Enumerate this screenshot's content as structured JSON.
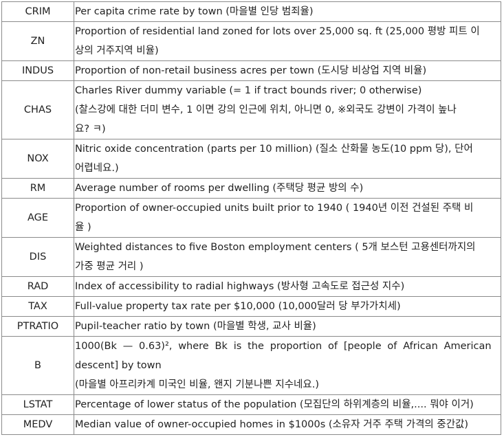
{
  "rows": [
    {
      "key": "CRIM",
      "desc": [
        "Per capita crime rate by town (마을별 인당 범죄율)"
      ]
    },
    {
      "key": "ZN",
      "desc": [
        "Proportion of residential land zoned for lots over 25,000 sq. ft (25,000 평방 피트 이",
        "상의 거주지역 비율)"
      ]
    },
    {
      "key": "INDUS",
      "desc": [
        "Proportion of non-retail business acres per town (도시당 비상업 지역 비율)"
      ]
    },
    {
      "key": "CHAS",
      "desc": [
        "Charles River dummy variable (= 1 if tract bounds river; 0 otherwise)",
        "(찰스강에 대한 더미 변수, 1 이면 강의 인근에 위치, 아니면 0, ※외국도 강변이 가격이 높나",
        "요? ㅋ)"
      ]
    },
    {
      "key": "NOX",
      "desc": [
        "Nitric oxide concentration (parts per 10 million) (질소 산화물 농도(10 ppm 당), 단어",
        "어렵네요.)"
      ]
    },
    {
      "key": "RM",
      "desc": [
        "Average number of rooms per dwelling (주택당 평균 방의 수)"
      ]
    },
    {
      "key": "AGE",
      "desc": [
        "Proportion of owner-occupied units built prior to 1940 ( 1940년 이전 건설된 주택 비",
        "율 )"
      ]
    },
    {
      "key": "DIS",
      "desc": [
        "Weighted distances to five Boston employment centers ( 5개 보스턴 고용센터까지의",
        "가중 평균 거리 )"
      ]
    },
    {
      "key": "RAD",
      "desc": [
        "Index of accessibility to radial highways (방사형 고속도로 접근성 지수)"
      ]
    },
    {
      "key": "TAX",
      "desc": [
        "Full-value property tax rate per $10,000 (10,000달러 당 부가가치세)"
      ]
    },
    {
      "key": "PTRATIO",
      "desc": [
        "Pupil-teacher ratio by town (마을별 학생, 교사 비율)"
      ]
    },
    {
      "key": "B",
      "desc": [
        "1000(Bk — 0.63)², where Bk is the proportion of [people of African American",
        "descent] by town",
        "(마을별 아프리카계 미국인 비율, 왠지 기분나쁜 지수네요.)"
      ]
    },
    {
      "key": "LSTAT",
      "desc": [
        "Percentage of lower status of the population (모집단의 하위계층의 비율,.... 뭐야 이거)"
      ]
    },
    {
      "key": "MEDV",
      "desc": [
        "Median value of owner-occupied homes in $1000s (소유자 거주 주택 가격의 중간값)"
      ]
    }
  ]
}
